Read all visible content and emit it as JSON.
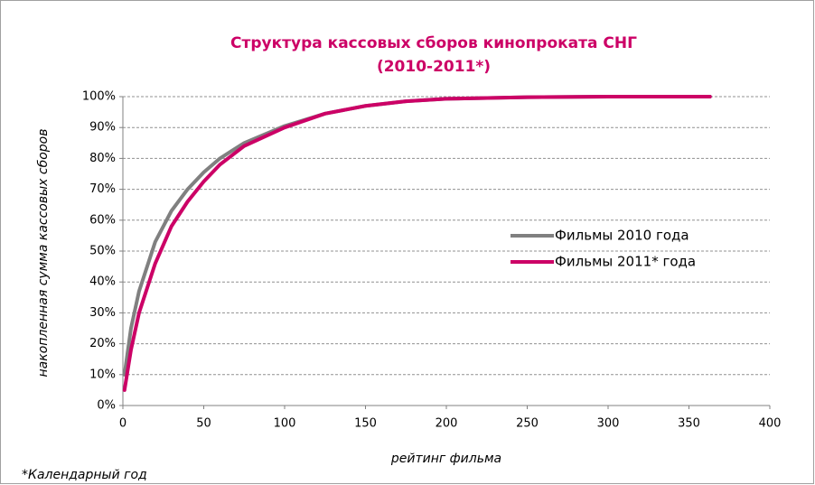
{
  "chart_data": {
    "type": "line",
    "title": "Структура кассовых сборов кинопроката  СНГ",
    "subtitle": "(2010-2011*)",
    "x_label": "рейтинг фильма",
    "y_label": "накопленная сумма кассовых сборов",
    "footnote": "*Календарный год",
    "x": [
      1,
      5,
      10,
      20,
      30,
      40,
      50,
      60,
      75,
      100,
      125,
      150,
      175,
      200,
      250,
      300,
      363
    ],
    "series": [
      {
        "name": "Фильмы 2010 года",
        "color": "#808080",
        "values": [
          10,
          25,
          37,
          53,
          63,
          70,
          75.5,
          80,
          85,
          90.5,
          94.5,
          97,
          98.5,
          99.3,
          99.8,
          100,
          100
        ]
      },
      {
        "name": "Фильмы 2011* года",
        "color": "#cc0066",
        "values": [
          5,
          18,
          30,
          46,
          58,
          66,
          72.5,
          78,
          84,
          90,
          94.5,
          97,
          98.5,
          99.3,
          99.8,
          100,
          100
        ]
      }
    ],
    "xlim": [
      0,
      400
    ],
    "xticks": [
      0,
      50,
      100,
      150,
      200,
      250,
      300,
      350,
      400
    ],
    "ylim": [
      0,
      100
    ],
    "yticks": [
      {
        "value": 0,
        "label": "0%"
      },
      {
        "value": 10,
        "label": "10%"
      },
      {
        "value": 20,
        "label": "20%"
      },
      {
        "value": 30,
        "label": "30%"
      },
      {
        "value": 40,
        "label": "40%"
      },
      {
        "value": 50,
        "label": "50%"
      },
      {
        "value": 60,
        "label": "60%"
      },
      {
        "value": 70,
        "label": "70%"
      },
      {
        "value": 80,
        "label": "80%"
      },
      {
        "value": 90,
        "label": "90%"
      },
      {
        "value": 100,
        "label": "100%"
      }
    ],
    "grid": true,
    "legend": "right"
  }
}
